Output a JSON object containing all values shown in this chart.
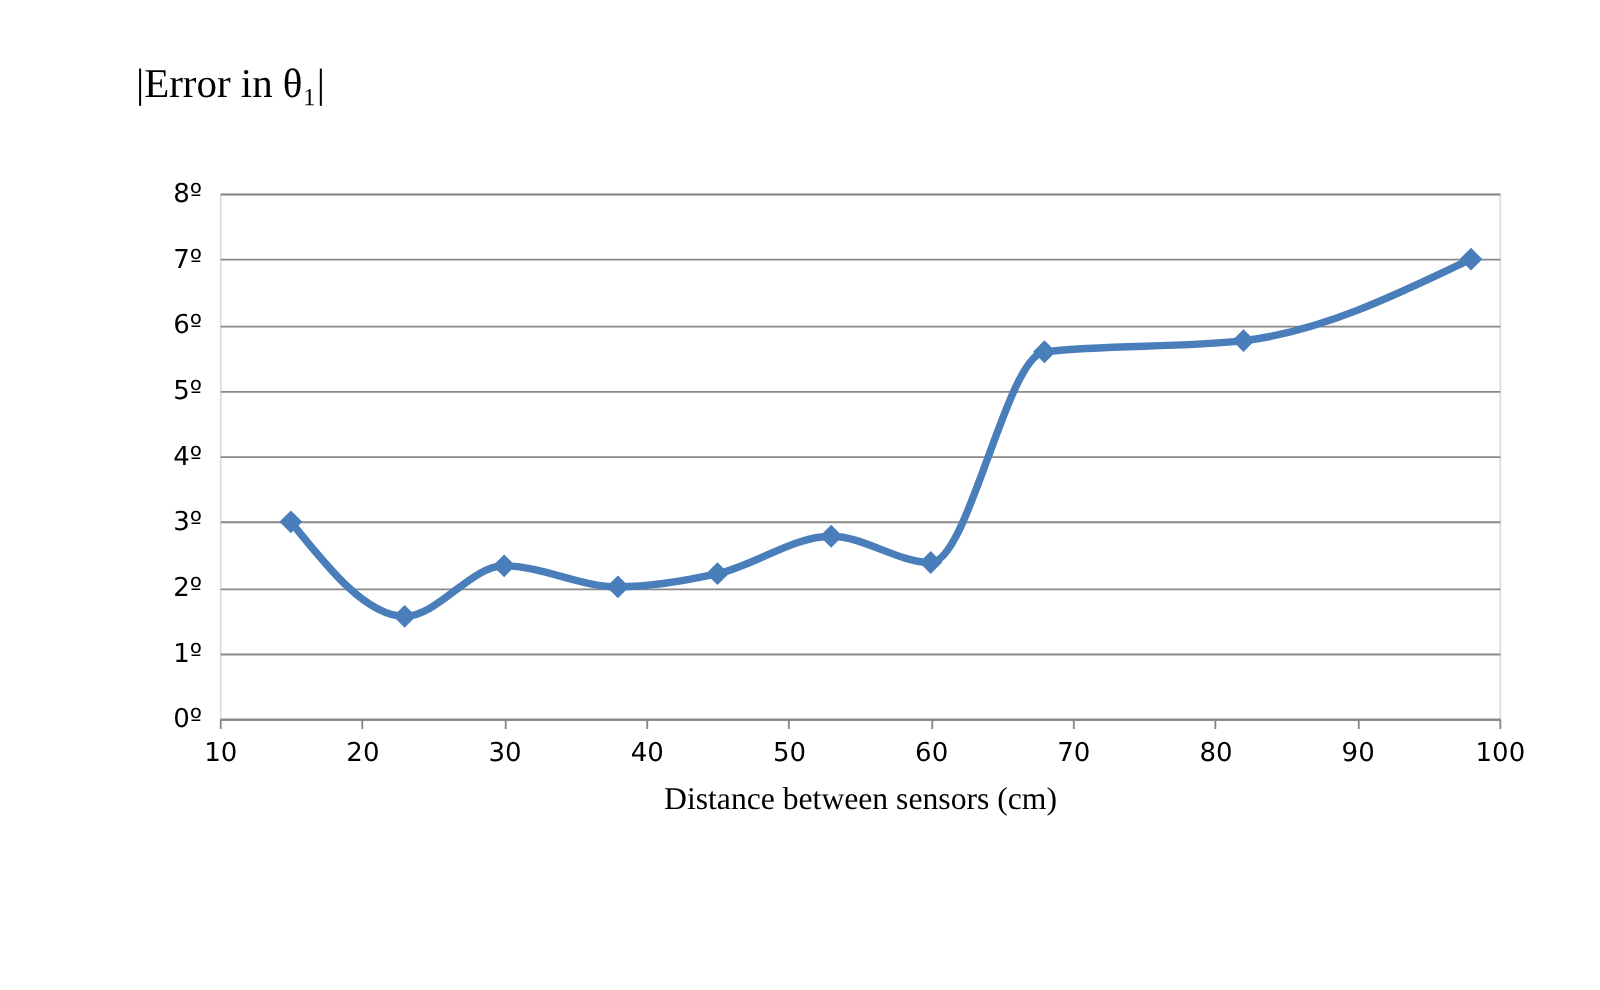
{
  "chart_data": {
    "type": "line",
    "title": "|Error in θ₁|",
    "xlabel": "Distance between sensors (cm)",
    "x": [
      15,
      23,
      30,
      38,
      45,
      53,
      60,
      68,
      82,
      98
    ],
    "series": [
      {
        "color": "#4a7ebb",
        "values": [
          3.0,
          1.56,
          2.33,
          2.01,
          2.21,
          2.78,
          2.38,
          5.59,
          5.76,
          7.0
        ]
      }
    ],
    "xlim": [
      10,
      100
    ],
    "xticks": [
      10,
      20,
      30,
      40,
      50,
      60,
      70,
      80,
      90,
      100
    ],
    "ylim": [
      0,
      8
    ],
    "yticks": [
      {
        "value": 0,
        "label": "0º"
      },
      {
        "value": 1,
        "label": "1º"
      },
      {
        "value": 2,
        "label": "2º"
      },
      {
        "value": 3,
        "label": "3º"
      },
      {
        "value": 4,
        "label": "4º"
      },
      {
        "value": 5,
        "label": "5º"
      },
      {
        "value": 6,
        "label": "6º"
      },
      {
        "value": 7,
        "label": "7º"
      },
      {
        "value": 8,
        "label": "8º"
      }
    ],
    "grid": "y",
    "marker": "diamond",
    "line_style": "solid"
  }
}
